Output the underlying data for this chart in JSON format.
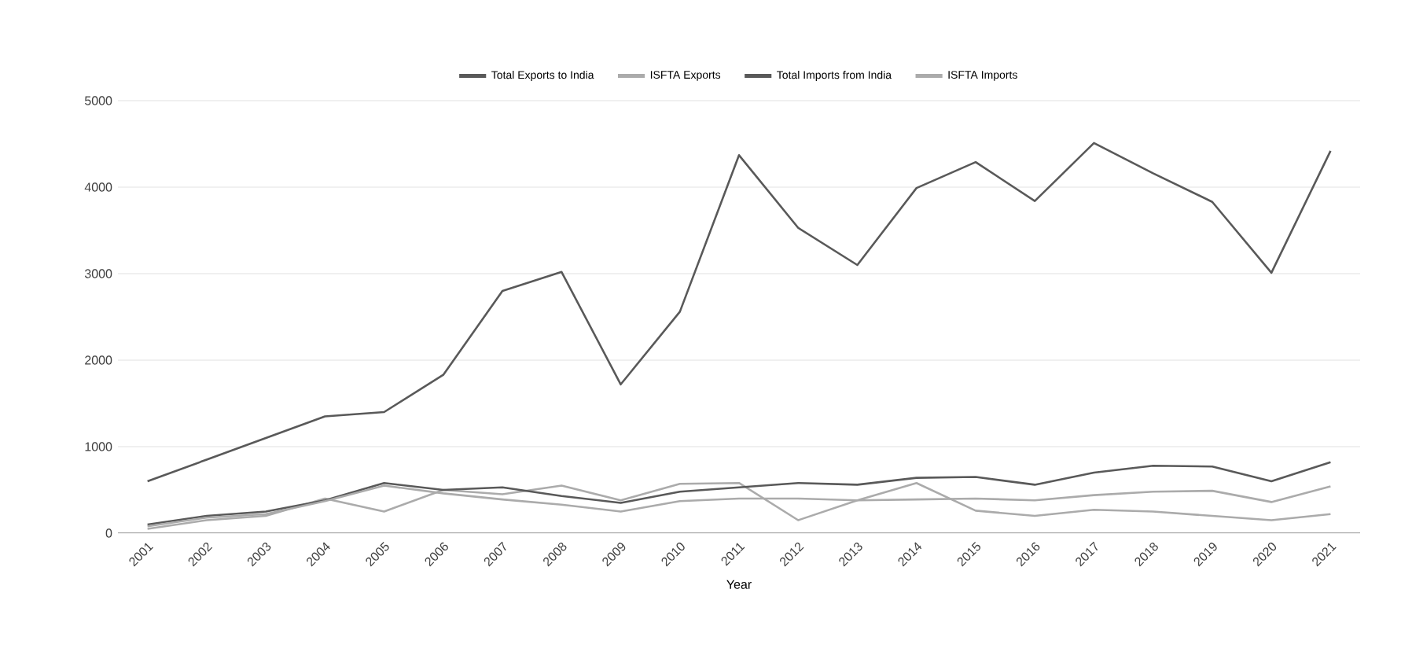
{
  "chart_data": {
    "type": "line",
    "xlabel": "Year",
    "categories": [
      "2001",
      "2002",
      "2003",
      "2004",
      "2005",
      "2006",
      "2007",
      "2008",
      "2009",
      "2010",
      "2011",
      "2012",
      "2013",
      "2014",
      "2015",
      "2016",
      "2017",
      "2018",
      "2019",
      "2020",
      "2021"
    ],
    "series": [
      {
        "name": "Total Exports to India",
        "color": "#595959",
        "values": [
          600,
          850,
          1100,
          1350,
          1400,
          1830,
          2800,
          3020,
          1720,
          2560,
          4370,
          3530,
          3100,
          3990,
          4290,
          3840,
          4510,
          4160,
          3830,
          3010,
          4420
        ]
      },
      {
        "name": "ISFTA Exports",
        "color": "#ababab",
        "values": [
          50,
          150,
          200,
          400,
          250,
          500,
          450,
          550,
          380,
          570,
          580,
          150,
          380,
          580,
          260,
          200,
          270,
          250,
          200,
          150,
          220
        ]
      },
      {
        "name": "Total Imports from India",
        "color": "#595959",
        "values": [
          100,
          200,
          250,
          380,
          580,
          500,
          530,
          430,
          350,
          480,
          530,
          580,
          560,
          640,
          650,
          560,
          700,
          780,
          770,
          600,
          820
        ]
      },
      {
        "name": "ISFTA Imports",
        "color": "#ababab",
        "values": [
          80,
          180,
          220,
          370,
          550,
          460,
          390,
          330,
          250,
          370,
          400,
          400,
          380,
          390,
          400,
          380,
          440,
          480,
          490,
          360,
          540
        ]
      }
    ],
    "ylim": [
      0,
      5000
    ],
    "yticks": [
      0,
      1000,
      2000,
      3000,
      4000,
      5000
    ],
    "grid": "y",
    "legend": "top",
    "marker": "none",
    "line_style": "solid"
  }
}
